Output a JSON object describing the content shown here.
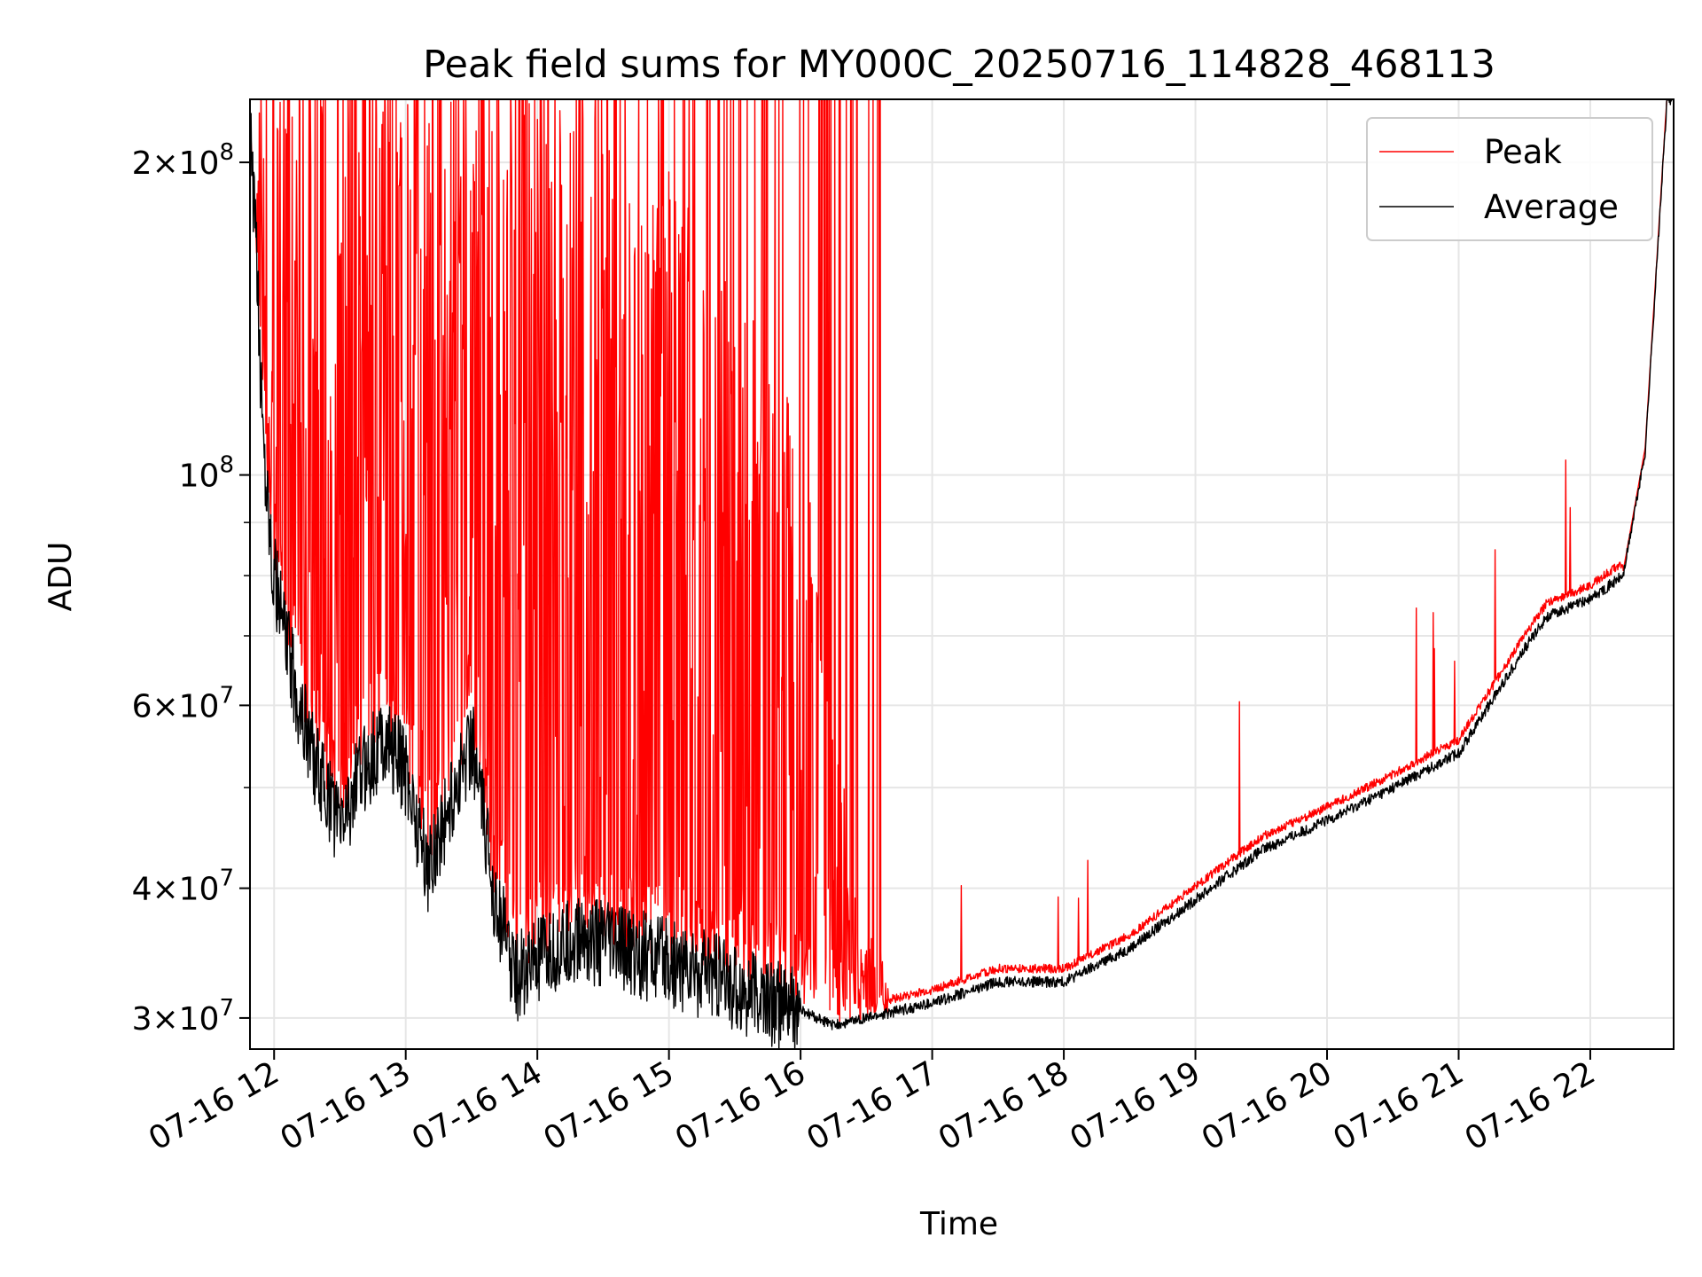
{
  "chart_data": {
    "type": "line",
    "title": "Peak field sums for MY000C_20250716_114828_468113",
    "xlabel": "Time",
    "ylabel": "ADU",
    "yscale": "log",
    "ylim": [
      28000000,
      230000000
    ],
    "xlim": [
      "07-16 11:49",
      "07-16 22:38"
    ],
    "grid": true,
    "legend_position": "top-right",
    "x_ticks": [
      "07-16 12",
      "07-16 13",
      "07-16 14",
      "07-16 15",
      "07-16 16",
      "07-16 17",
      "07-16 18",
      "07-16 19",
      "07-16 20",
      "07-16 21",
      "07-16 22"
    ],
    "y_ticks": [
      {
        "value": 200000000,
        "mantissa": "2",
        "exponent": "8"
      },
      {
        "value": 100000000,
        "mantissa": "",
        "exponent": "8"
      },
      {
        "value": 60000000,
        "mantissa": "6",
        "exponent": "7"
      },
      {
        "value": 40000000,
        "mantissa": "4",
        "exponent": "7"
      },
      {
        "value": 30000000,
        "mantissa": "3",
        "exponent": "7"
      }
    ],
    "series": [
      {
        "name": "Peak",
        "color": "#ff0000",
        "x": [
          "07-16 11:49",
          "07-16 12:00",
          "07-16 12:30",
          "07-16 13:00",
          "07-16 13:30",
          "07-16 14:00",
          "07-16 14:30",
          "07-16 15:00",
          "07-16 15:30",
          "07-16 16:00",
          "07-16 16:30",
          "07-16 17:00",
          "07-16 17:30",
          "07-16 18:00",
          "07-16 18:30",
          "07-16 19:00",
          "07-16 19:30",
          "07-16 20:00",
          "07-16 20:30",
          "07-16 21:00",
          "07-16 21:20",
          "07-16 21:40",
          "07-16 22:00",
          "07-16 22:20",
          "07-16 22:35"
        ],
        "values": [
          230000000,
          230000000,
          230000000,
          230000000,
          230000000,
          230000000,
          230000000,
          200000000,
          150000000,
          120000000,
          32000000,
          33000000,
          34000000,
          35000000,
          38000000,
          41000000,
          46000000,
          49000000,
          52000000,
          60000000,
          66000000,
          76000000,
          80000000,
          95000000,
          230000000
        ]
      },
      {
        "name": "Average",
        "color": "#000000",
        "x": [
          "07-16 11:49",
          "07-16 11:52",
          "07-16 11:55",
          "07-16 12:00",
          "07-16 12:10",
          "07-16 12:20",
          "07-16 12:30",
          "07-16 12:40",
          "07-16 12:50",
          "07-16 13:00",
          "07-16 13:10",
          "07-16 13:20",
          "07-16 13:30",
          "07-16 13:40",
          "07-16 13:50",
          "07-16 14:00",
          "07-16 14:20",
          "07-16 14:40",
          "07-16 15:00",
          "07-16 15:20",
          "07-16 15:40",
          "07-16 16:00",
          "07-16 16:15",
          "07-16 16:30",
          "07-16 17:00",
          "07-16 17:30",
          "07-16 18:00",
          "07-16 18:30",
          "07-16 19:00",
          "07-16 19:30",
          "07-16 20:00",
          "07-16 20:30",
          "07-16 21:00",
          "07-16 21:30",
          "07-16 21:40",
          "07-16 22:00",
          "07-16 22:15",
          "07-16 22:25",
          "07-16 22:35"
        ],
        "values": [
          215000000,
          160000000,
          110000000,
          80000000,
          62000000,
          52000000,
          46000000,
          52000000,
          56000000,
          52000000,
          42000000,
          48000000,
          56000000,
          40000000,
          33000000,
          34000000,
          36000000,
          35000000,
          34000000,
          33000000,
          31500000,
          30500000,
          29500000,
          30000000,
          31000000,
          32500000,
          32500000,
          35000000,
          39000000,
          43500000,
          46500000,
          50000000,
          54000000,
          68000000,
          73000000,
          76000000,
          80000000,
          105000000,
          230000000
        ]
      }
    ]
  }
}
